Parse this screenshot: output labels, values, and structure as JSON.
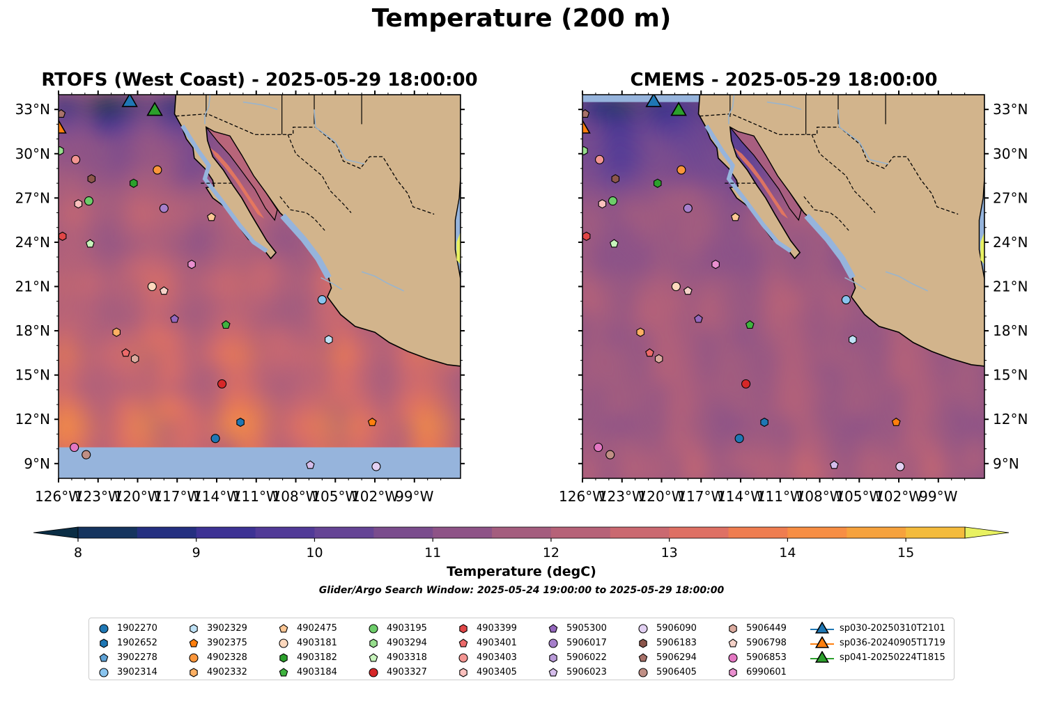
{
  "figure": {
    "title": "Temperature (200 m)",
    "left_title": "RTOFS (West Coast) - 2025-05-29 18:00:00",
    "right_title": "CMEMS - 2025-05-29 18:00:00",
    "colorbar_label": "Temperature (degC)",
    "search_window": "Glider/Argo Search Window: 2025-05-24 19:00:00 to 2025-05-29 18:00:00"
  },
  "map": {
    "lon_range": [
      -126,
      -95.5
    ],
    "lat_range": [
      8,
      34
    ],
    "lon_ticks": [
      "126°W",
      "123°W",
      "120°W",
      "117°W",
      "114°W",
      "111°W",
      "108°W",
      "105°W",
      "102°W",
      "99°W"
    ],
    "lat_ticks": [
      "9°N",
      "12°N",
      "15°N",
      "18°N",
      "21°N",
      "24°N",
      "27°N",
      "30°N",
      "33°N"
    ],
    "colors": {
      "land": "#d2b48c",
      "ocean_fill": "#96b4dc",
      "rivers": "#9ab4cc"
    }
  },
  "colorbar": {
    "min": 8,
    "max": 15.5,
    "step": 0.5,
    "ticks": [
      "8",
      "9",
      "10",
      "11",
      "12",
      "13",
      "14",
      "15"
    ],
    "colors": [
      "#0a2d44",
      "#15345e",
      "#242f80",
      "#3d3294",
      "#513a97",
      "#654495",
      "#7a4c8d",
      "#8e5387",
      "#a45d7e",
      "#b66278",
      "#ca6970",
      "#de7064",
      "#ef7d50",
      "#f78e44",
      "#f6a23d",
      "#f4bb3c",
      "#f1d444",
      "#e8f161"
    ]
  },
  "legend": {
    "columns": [
      [
        {
          "label": "1902270",
          "marker": "circle",
          "color": "#1f77b4"
        },
        {
          "label": "1902652",
          "marker": "hexagon",
          "color": "#1f77b4"
        },
        {
          "label": "3902278",
          "marker": "pentagon",
          "color": "#5fa2d6"
        },
        {
          "label": "3902314",
          "marker": "circle",
          "color": "#89c4ee"
        }
      ],
      [
        {
          "label": "3902329",
          "marker": "hexagon",
          "color": "#bfe2f6"
        },
        {
          "label": "3902375",
          "marker": "pentagon",
          "color": "#ff7f0e"
        },
        {
          "label": "4902328",
          "marker": "circle",
          "color": "#fb963b"
        },
        {
          "label": "4902332",
          "marker": "hexagon",
          "color": "#fdb063"
        }
      ],
      [
        {
          "label": "4902475",
          "marker": "pentagon",
          "color": "#fdc795"
        },
        {
          "label": "4903181",
          "marker": "circle",
          "color": "#fdd8bd"
        },
        {
          "label": "4903182",
          "marker": "hexagon",
          "color": "#2ca02c"
        },
        {
          "label": "4903184",
          "marker": "pentagon",
          "color": "#3fb33f"
        }
      ],
      [
        {
          "label": "4903195",
          "marker": "circle",
          "color": "#6dcd6a"
        },
        {
          "label": "4903294",
          "marker": "hexagon",
          "color": "#97de8d"
        },
        {
          "label": "4903318",
          "marker": "pentagon",
          "color": "#c8f4bc"
        },
        {
          "label": "4903327",
          "marker": "circle",
          "color": "#d62728"
        }
      ],
      [
        {
          "label": "4903399",
          "marker": "hexagon",
          "color": "#e04647"
        },
        {
          "label": "4903401",
          "marker": "pentagon",
          "color": "#ec6a6a"
        },
        {
          "label": "4903403",
          "marker": "circle",
          "color": "#f39592"
        },
        {
          "label": "4903405",
          "marker": "hexagon",
          "color": "#fbc0bd"
        }
      ],
      [
        {
          "label": "5905300",
          "marker": "pentagon",
          "color": "#9467bd"
        },
        {
          "label": "5906017",
          "marker": "circle",
          "color": "#a67fcb"
        },
        {
          "label": "5906022",
          "marker": "hexagon",
          "color": "#b99ad8"
        },
        {
          "label": "5906023",
          "marker": "pentagon",
          "color": "#d5bdeb"
        }
      ],
      [
        {
          "label": "5906090",
          "marker": "circle",
          "color": "#e2d0f2"
        },
        {
          "label": "5906183",
          "marker": "hexagon",
          "color": "#8c564b"
        },
        {
          "label": "5906294",
          "marker": "pentagon",
          "color": "#a8726a"
        },
        {
          "label": "5906405",
          "marker": "circle",
          "color": "#c08f85"
        }
      ],
      [
        {
          "label": "5906449",
          "marker": "hexagon",
          "color": "#dbab9f"
        },
        {
          "label": "5906798",
          "marker": "pentagon",
          "color": "#f5d2c8"
        },
        {
          "label": "5906853",
          "marker": "circle",
          "color": "#e377c2"
        },
        {
          "label": "6990601",
          "marker": "hexagon",
          "color": "#e98fcf"
        }
      ],
      [
        {
          "label": "sp030-20250310T2101",
          "marker": "triangle",
          "color": "#1f77b4"
        },
        {
          "label": "sp036-20240905T1719",
          "marker": "triangle",
          "color": "#ff7f0e"
        },
        {
          "label": "sp041-20250224T1815",
          "marker": "triangle",
          "color": "#2ca02c"
        }
      ]
    ]
  },
  "floats": [
    {
      "id": "1902270",
      "lon": -114.1,
      "lat": 10.7
    },
    {
      "id": "1902652",
      "lon": -112.2,
      "lat": 11.8
    },
    {
      "id": "3902314",
      "lon": -106.0,
      "lat": 20.1
    },
    {
      "id": "3902329",
      "lon": -105.5,
      "lat": 17.4
    },
    {
      "id": "3902375",
      "lon": -102.2,
      "lat": 11.8
    },
    {
      "id": "4902328",
      "lon": -118.5,
      "lat": 28.9
    },
    {
      "id": "4902332",
      "lon": -121.6,
      "lat": 17.9
    },
    {
      "id": "4902475",
      "lon": -114.4,
      "lat": 25.7
    },
    {
      "id": "4903181",
      "lon": -118.9,
      "lat": 21.0
    },
    {
      "id": "4903182",
      "lon": -120.3,
      "lat": 28.0
    },
    {
      "id": "4903184",
      "lon": -113.3,
      "lat": 18.4
    },
    {
      "id": "4903195",
      "lon": -123.7,
      "lat": 26.8
    },
    {
      "id": "4903294",
      "lon": -125.9,
      "lat": 30.2
    },
    {
      "id": "4903318",
      "lon": -123.6,
      "lat": 23.9
    },
    {
      "id": "4903327",
      "lon": -113.6,
      "lat": 14.4
    },
    {
      "id": "4903399",
      "lon": -125.7,
      "lat": 24.4
    },
    {
      "id": "4903401",
      "lon": -120.9,
      "lat": 16.5
    },
    {
      "id": "4903403",
      "lon": -124.7,
      "lat": 29.6
    },
    {
      "id": "4903405",
      "lon": -124.5,
      "lat": 26.6
    },
    {
      "id": "5905300",
      "lon": -117.2,
      "lat": 18.8
    },
    {
      "id": "5906017",
      "lon": -118.0,
      "lat": 26.3
    },
    {
      "id": "5906023",
      "lon": -106.9,
      "lat": 8.9
    },
    {
      "id": "5906090",
      "lon": -101.9,
      "lat": 8.8
    },
    {
      "id": "5906183",
      "lon": -123.5,
      "lat": 28.3
    },
    {
      "id": "5906294",
      "lon": -125.8,
      "lat": 32.7
    },
    {
      "id": "5906405",
      "lon": -123.9,
      "lat": 9.6
    },
    {
      "id": "5906798",
      "lon": -118.0,
      "lat": 20.7
    },
    {
      "id": "5906449",
      "lon": -120.2,
      "lat": 16.1
    },
    {
      "id": "5906853",
      "lon": -124.8,
      "lat": 10.1
    },
    {
      "id": "6990601",
      "lon": -115.9,
      "lat": 22.5
    }
  ],
  "gliders": [
    {
      "id": "sp030-20250310T2101",
      "lon": -120.6,
      "lat": 33.6
    },
    {
      "id": "sp036-20240905T1719",
      "lon": -126.0,
      "lat": 31.8
    },
    {
      "id": "sp041-20250224T1815",
      "lon": -118.7,
      "lat": 33.0
    }
  ]
}
